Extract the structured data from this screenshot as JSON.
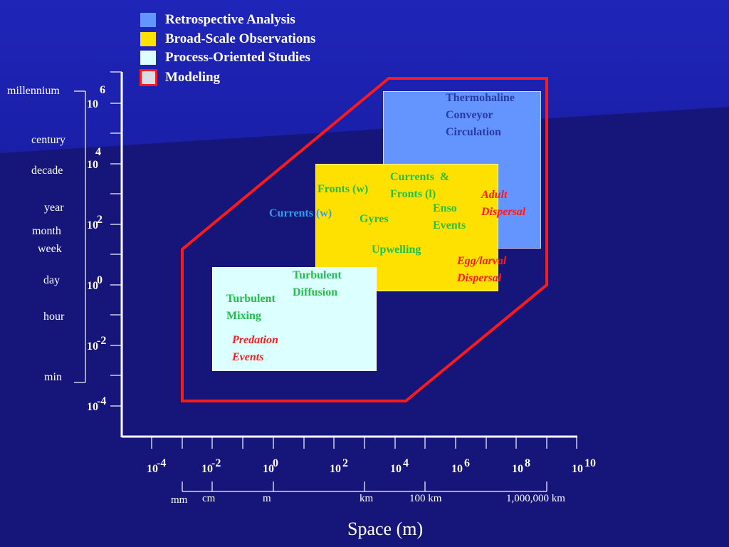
{
  "legend": [
    {
      "label": "Retrospective Analysis",
      "color": "#6495ff"
    },
    {
      "label": "Broad-Scale Observations",
      "color": "#ffe100"
    },
    {
      "label": "Process-Oriented Studies",
      "color": "#dcffff"
    },
    {
      "label": "Modeling",
      "color": "#d8dde6",
      "border": "#ff1a1a"
    }
  ],
  "time_labels": [
    "millennium",
    "century",
    "decade",
    "year",
    "month",
    "week",
    "day",
    "hour",
    "min"
  ],
  "y_ticks": [
    {
      "base": "10",
      "exp": "6"
    },
    {
      "base": "10",
      "exp": "4"
    },
    {
      "base": "10",
      "exp": "2"
    },
    {
      "base": "10",
      "exp": "0"
    },
    {
      "base": "10",
      "exp": "-2"
    },
    {
      "base": "10",
      "exp": "-4"
    }
  ],
  "x_ticks": [
    {
      "base": "10",
      "exp": "-4"
    },
    {
      "base": "10",
      "exp": "-2"
    },
    {
      "base": "10",
      "exp": "0"
    },
    {
      "base": "10",
      "exp": "2"
    },
    {
      "base": "10",
      "exp": "4"
    },
    {
      "base": "10",
      "exp": "6"
    },
    {
      "base": "10",
      "exp": "8"
    },
    {
      "base": "10",
      "exp": "10"
    }
  ],
  "space_units": [
    "mm",
    "cm",
    "m",
    "km",
    "100 km",
    "1,000,000 km"
  ],
  "x_axis_title": "Space (m)",
  "phenomena": {
    "thermohaline": [
      "Thermohaline",
      "Conveyor",
      "Circulation"
    ],
    "fronts_w": "Fronts (w)",
    "currents_fronts": [
      "Currents  &",
      "Fronts (l)"
    ],
    "adult_dispersal": [
      "Adult",
      "Dispersal"
    ],
    "currents_w": "Currents (w)",
    "gyres": "Gyres",
    "enso": [
      "Enso",
      "Events"
    ],
    "upwelling": "Upwelling",
    "egg_larval": [
      "Egg/larval",
      "Dispersal"
    ],
    "turbulent_diffusion": [
      "Turbulent",
      "Diffusion"
    ],
    "turbulent_mixing": [
      "Turbulent",
      "Mixing"
    ],
    "predation": [
      "Predation",
      "Events"
    ]
  }
}
